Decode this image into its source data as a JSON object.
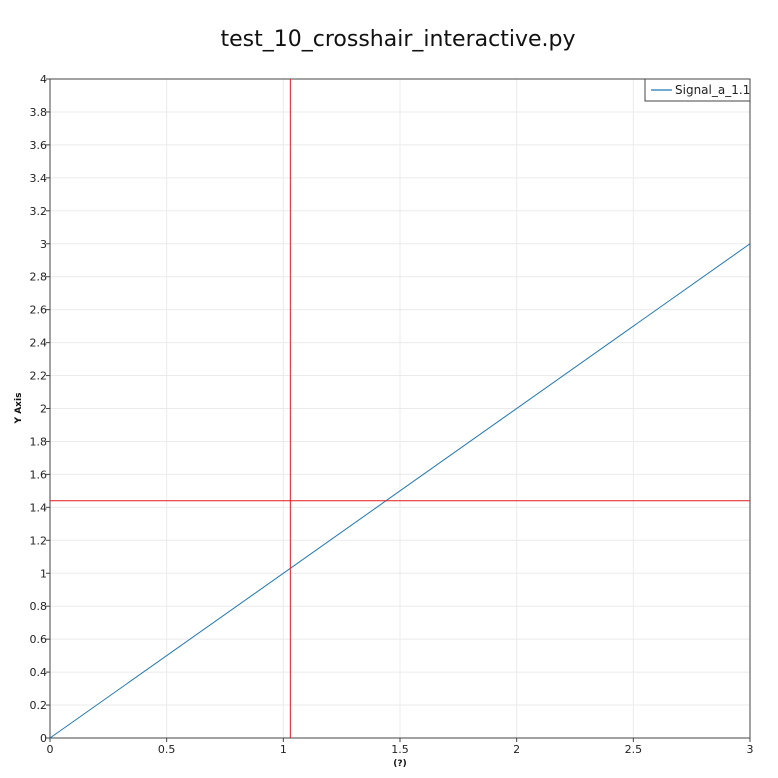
{
  "chart_data": {
    "type": "line",
    "title": "test_10_crosshair_interactive.py",
    "xlabel": "(?)",
    "ylabel": "Y Axis",
    "xlim": [
      0,
      3
    ],
    "ylim": [
      0,
      4
    ],
    "x_ticks": [
      "0",
      "0.5",
      "1",
      "1.5",
      "2",
      "2.5",
      "3"
    ],
    "y_ticks": [
      "0",
      "0.2",
      "0.4",
      "0.6",
      "0.8",
      "1",
      "1.2",
      "1.4",
      "1.6",
      "1.8",
      "2",
      "2.2",
      "2.4",
      "2.6",
      "2.8",
      "3",
      "3.2",
      "3.4",
      "3.6",
      "3.8",
      "4"
    ],
    "grid": true,
    "legend_position": "top-right",
    "series": [
      {
        "name": "Signal_a_1.1",
        "color": "#1f77b4",
        "x": [
          0,
          3
        ],
        "y": [
          0,
          3
        ]
      }
    ],
    "crosshair": {
      "x": 1.03,
      "y": 1.44,
      "color": "#e41a1c"
    }
  }
}
